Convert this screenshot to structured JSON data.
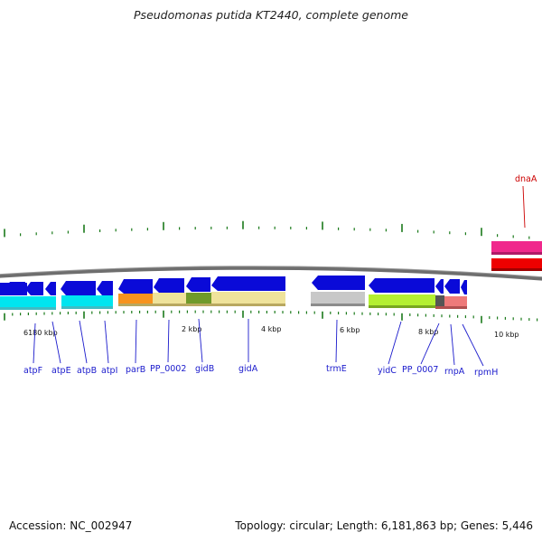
{
  "title": "Pseudomonas putida KT2440, complete genome",
  "footer": {
    "accession": "Accession: NC_002947",
    "genome_info": "Topology: circular; Length: 6,181,863 bp; Genes: 5,446"
  },
  "colors": {
    "backbone": "#7a7a7a",
    "cds_arrow": "#0a0ad8",
    "gene_label": "#1a1acc",
    "dnaA_label": "#cc0000",
    "tick": "#1a7a1a"
  },
  "scale_labels": [
    "6180 kbp",
    "2 kbp",
    "4 kbp",
    "6 kbp",
    "8 kbp",
    "10 kbp"
  ],
  "genes": [
    {
      "name": "atpF"
    },
    {
      "name": "atpE"
    },
    {
      "name": "atpB"
    },
    {
      "name": "atpI"
    },
    {
      "name": "parB"
    },
    {
      "name": "PP_0002"
    },
    {
      "name": "gidB"
    },
    {
      "name": "gidA"
    },
    {
      "name": "trmE"
    },
    {
      "name": "yidC"
    },
    {
      "name": "PP_0007"
    },
    {
      "name": "rnpA"
    },
    {
      "name": "rpmH"
    },
    {
      "name": "dnaA"
    }
  ]
}
